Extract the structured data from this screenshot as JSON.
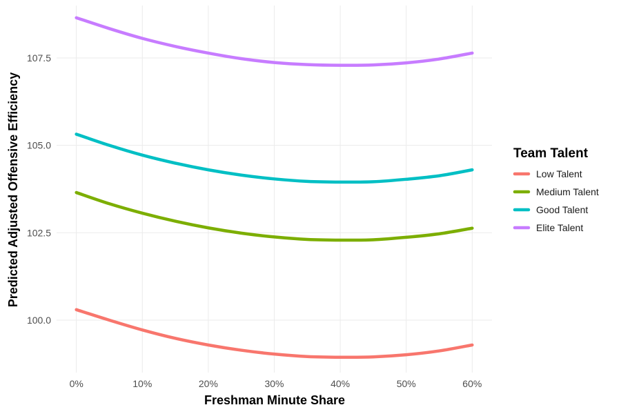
{
  "chart_data": {
    "type": "line",
    "title": "",
    "xlabel": "Freshman Minute Share",
    "ylabel": "Predicted Adjusted Offensive Efficiency",
    "x_ticks": [
      "0%",
      "10%",
      "20%",
      "30%",
      "40%",
      "50%",
      "60%"
    ],
    "y_ticks": [
      "100.0",
      "102.5",
      "105.0",
      "107.5"
    ],
    "xlim": [
      -0.03,
      0.63
    ],
    "ylim": [
      98.5,
      109.0
    ],
    "grid": true,
    "legend_position": "right",
    "legend_title": "Team Talent",
    "x": [
      0,
      0.05,
      0.1,
      0.15,
      0.2,
      0.25,
      0.3,
      0.35,
      0.4,
      0.45,
      0.5,
      0.55,
      0.6
    ],
    "series": [
      {
        "name": "Low Talent",
        "color": "#F8766D",
        "values": [
          100.3,
          100.0,
          99.72,
          99.48,
          99.29,
          99.14,
          99.03,
          98.96,
          98.94,
          98.95,
          99.01,
          99.12,
          99.29
        ]
      },
      {
        "name": "Medium Talent",
        "color": "#7CAE00",
        "values": [
          103.65,
          103.33,
          103.06,
          102.83,
          102.64,
          102.49,
          102.38,
          102.31,
          102.29,
          102.3,
          102.37,
          102.47,
          102.63
        ]
      },
      {
        "name": "Good Talent",
        "color": "#00BFC4",
        "values": [
          105.32,
          105.0,
          104.72,
          104.49,
          104.3,
          104.15,
          104.04,
          103.97,
          103.95,
          103.96,
          104.03,
          104.13,
          104.3
        ]
      },
      {
        "name": "Elite Talent",
        "color": "#C77CFF",
        "values": [
          108.65,
          108.34,
          108.06,
          107.83,
          107.64,
          107.48,
          107.37,
          107.31,
          107.29,
          107.3,
          107.36,
          107.47,
          107.64
        ]
      }
    ]
  }
}
